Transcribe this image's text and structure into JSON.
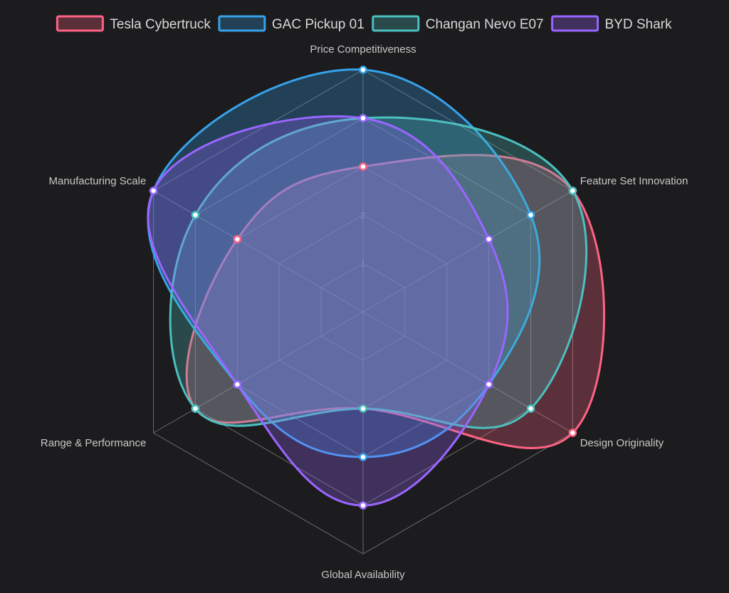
{
  "chart_data": {
    "type": "radar",
    "axes": [
      "Price Competitiveness",
      "Feature Set Innovation",
      "Design Originality",
      "Global Availability",
      "Range & Performance",
      "Manufacturing Scale"
    ],
    "r_range": [
      0,
      5
    ],
    "ticks": [
      1,
      2
    ],
    "grid": true,
    "legend_position": "top",
    "series": [
      {
        "name": "Tesla Cybertruck",
        "values": [
          3,
          5,
          5,
          2,
          4,
          3
        ],
        "color": "#ff6384",
        "fill": "rgba(255,99,132,0.28)"
      },
      {
        "name": "GAC Pickup 01",
        "values": [
          5,
          4,
          3,
          3,
          3,
          5
        ],
        "color": "#36a2eb",
        "fill": "rgba(54,162,235,0.28)"
      },
      {
        "name": "Changan Nevo E07",
        "values": [
          4,
          5,
          4,
          2,
          4,
          4
        ],
        "color": "#4bc0c0",
        "fill": "rgba(75,192,192,0.28)"
      },
      {
        "name": "BYD Shark",
        "values": [
          4,
          3,
          3,
          4,
          3,
          5
        ],
        "color": "#9966ff",
        "fill": "rgba(153,102,255,0.28)"
      }
    ]
  }
}
